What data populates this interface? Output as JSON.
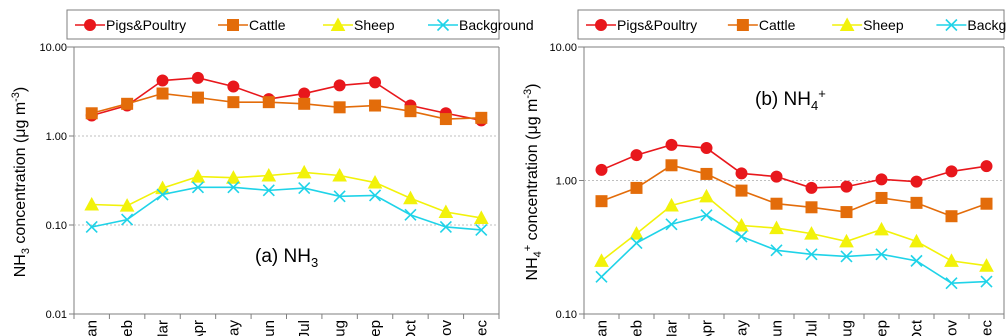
{
  "chart_data": [
    {
      "type": "line",
      "panel_label_main": "(a) NH",
      "panel_label_sub": "3",
      "panel_label_sup": "",
      "ylabel_parts": [
        "NH",
        "3",
        " concentration (μg m",
        "-3",
        ")"
      ],
      "yscale": "log",
      "ylim": [
        0.01,
        10
      ],
      "yticks": [
        "0.01",
        "0.10",
        "1.00",
        "10.00"
      ],
      "categories": [
        "Jan",
        "Feb",
        "Mar",
        "Apr",
        "May",
        "Jun",
        "Jul",
        "Aug",
        "Sep",
        "Oct",
        "Nov",
        "Dec"
      ],
      "legend_position": "top",
      "series": [
        {
          "name": "Pigs&Poultry",
          "color": "#e8171c",
          "marker": "circle",
          "values": [
            1.7,
            2.2,
            4.2,
            4.5,
            3.6,
            2.6,
            3.0,
            3.7,
            4.0,
            2.2,
            1.8,
            1.5
          ]
        },
        {
          "name": "Cattle",
          "color": "#e36c0a",
          "marker": "square",
          "values": [
            1.8,
            2.3,
            3.0,
            2.7,
            2.4,
            2.4,
            2.3,
            2.1,
            2.2,
            1.9,
            1.55,
            1.6
          ]
        },
        {
          "name": "Sheep",
          "color": "#f2f20a",
          "marker": "triangle",
          "values": [
            0.17,
            0.165,
            0.26,
            0.35,
            0.34,
            0.36,
            0.39,
            0.36,
            0.3,
            0.2,
            0.14,
            0.12
          ]
        },
        {
          "name": "Background",
          "color": "#1fd3e8",
          "marker": "x",
          "values": [
            0.095,
            0.115,
            0.22,
            0.265,
            0.265,
            0.245,
            0.26,
            0.21,
            0.215,
            0.13,
            0.095,
            0.088
          ]
        }
      ]
    },
    {
      "type": "line",
      "panel_label_main": "(b) NH",
      "panel_label_sub": "4",
      "panel_label_sup": "+",
      "ylabel_parts": [
        "NH",
        "4",
        "+",
        " concentration (μg m",
        "-3",
        ")"
      ],
      "yscale": "log",
      "ylim": [
        0.1,
        10
      ],
      "yticks": [
        "0.10",
        "1.00",
        "10.00"
      ],
      "categories": [
        "Jan",
        "Feb",
        "Mar",
        "Apr",
        "May",
        "Jun",
        "Jul",
        "Aug",
        "Sep",
        "Oct",
        "Nov",
        "Dec"
      ],
      "legend_position": "top",
      "series": [
        {
          "name": "Pigs&Poultry",
          "color": "#e8171c",
          "marker": "circle",
          "values": [
            1.2,
            1.55,
            1.85,
            1.75,
            1.13,
            1.07,
            0.88,
            0.9,
            1.02,
            0.98,
            1.17,
            1.28
          ]
        },
        {
          "name": "Cattle",
          "color": "#e36c0a",
          "marker": "square",
          "values": [
            0.7,
            0.88,
            1.3,
            1.12,
            0.84,
            0.67,
            0.63,
            0.58,
            0.74,
            0.68,
            0.54,
            0.67
          ]
        },
        {
          "name": "Sheep",
          "color": "#f2f20a",
          "marker": "triangle",
          "values": [
            0.25,
            0.4,
            0.65,
            0.76,
            0.46,
            0.44,
            0.4,
            0.35,
            0.43,
            0.35,
            0.25,
            0.23
          ]
        },
        {
          "name": "Background",
          "color": "#1fd3e8",
          "marker": "x",
          "values": [
            0.19,
            0.34,
            0.47,
            0.55,
            0.38,
            0.3,
            0.28,
            0.27,
            0.28,
            0.25,
            0.17,
            0.175
          ]
        }
      ]
    }
  ]
}
